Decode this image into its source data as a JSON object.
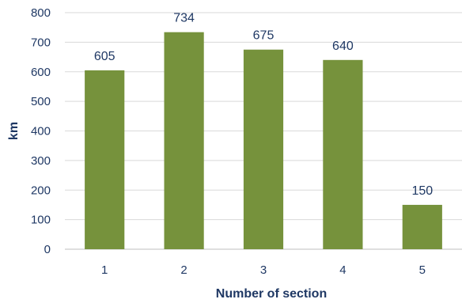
{
  "chart_data": {
    "type": "bar",
    "categories": [
      "1",
      "2",
      "3",
      "4",
      "5"
    ],
    "values": [
      605,
      734,
      675,
      640,
      150
    ],
    "data_labels": [
      "605",
      "734",
      "675",
      "640",
      "150"
    ],
    "title": "",
    "xlabel": "Number of section",
    "ylabel": "km",
    "ylim": [
      0,
      800
    ],
    "yticks": [
      0,
      100,
      200,
      300,
      400,
      500,
      600,
      700,
      800
    ],
    "grid": true,
    "legend": "none",
    "bar_color": "#76923c"
  }
}
